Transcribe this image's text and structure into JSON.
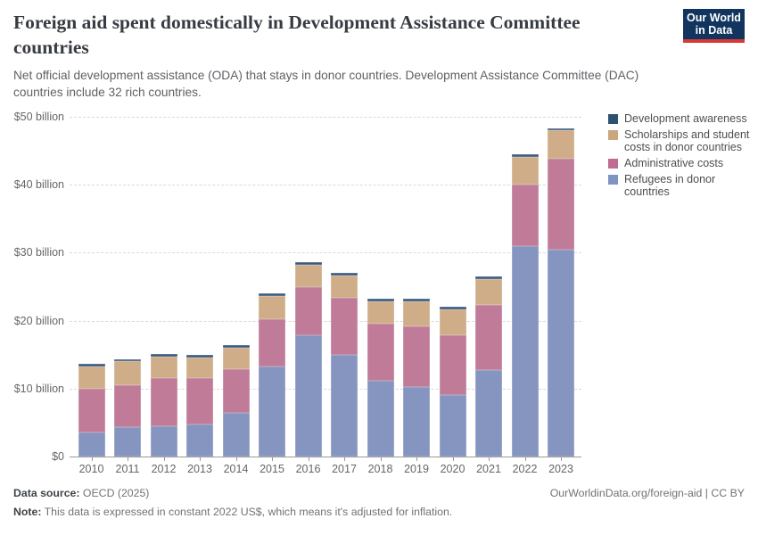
{
  "header": {
    "title": "Foreign aid spent domestically in Development Assistance Committee countries",
    "subtitle": "Net official development assistance (ODA) that stays in donor countries. Development Assistance Committee (DAC) countries include 32 rich countries.",
    "logo": {
      "line1": "Our World",
      "line2": "in Data",
      "bg_color": "#12355f",
      "accent_color": "#d93a34"
    }
  },
  "chart_data": {
    "type": "bar",
    "stacked": true,
    "title": "Foreign aid spent domestically in Development Assistance Committee countries",
    "unit": "constant 2022 US$ billions",
    "categories": [
      "2010",
      "2011",
      "2012",
      "2013",
      "2014",
      "2015",
      "2016",
      "2017",
      "2018",
      "2019",
      "2020",
      "2021",
      "2022",
      "2023"
    ],
    "series": [
      {
        "name": "Refugees in donor countries",
        "color": "#8595bf",
        "legend_color": "#7d95c2",
        "values": [
          3.6,
          4.3,
          4.4,
          4.7,
          6.4,
          13.2,
          17.8,
          15.0,
          11.2,
          10.2,
          9.0,
          12.7,
          31.0,
          30.5
        ]
      },
      {
        "name": "Administrative costs",
        "color": "#bf7b98",
        "legend_color": "#c06b90",
        "values": [
          6.4,
          6.2,
          7.1,
          6.8,
          6.4,
          7.0,
          7.1,
          8.4,
          8.3,
          9.0,
          8.8,
          9.6,
          9.0,
          13.3
        ]
      },
      {
        "name": "Scholarships and student costs in donor countries",
        "color": "#cfad88",
        "legend_color": "#c7a77b",
        "values": [
          3.3,
          3.5,
          3.2,
          3.1,
          3.2,
          3.4,
          3.3,
          3.2,
          3.3,
          3.6,
          3.9,
          3.8,
          4.1,
          4.2
        ]
      },
      {
        "name": "Development awareness",
        "color": "#3a5a80",
        "legend_color": "#2d5271",
        "values": [
          0.35,
          0.35,
          0.4,
          0.4,
          0.4,
          0.4,
          0.4,
          0.4,
          0.4,
          0.4,
          0.4,
          0.4,
          0.4,
          0.3
        ]
      }
    ],
    "legend": [
      {
        "label": "Development awareness",
        "color": "#2d5271"
      },
      {
        "label": "Scholarships and student costs in donor countries",
        "color": "#c7a77b"
      },
      {
        "label": "Administrative costs",
        "color": "#c06b90"
      },
      {
        "label": "Refugees in donor countries",
        "color": "#7d95c2"
      }
    ],
    "legend_position": "right",
    "grid": "dashed-horizontal",
    "ylim": [
      0,
      50
    ],
    "yticks": [
      {
        "value": 0,
        "label": "$0"
      },
      {
        "value": 10,
        "label": "$10 billion"
      },
      {
        "value": 20,
        "label": "$20 billion"
      },
      {
        "value": 30,
        "label": "$30 billion"
      },
      {
        "value": 40,
        "label": "$40 billion"
      },
      {
        "value": 50,
        "label": "$50 billion"
      }
    ]
  },
  "footer": {
    "source_label": "Data source:",
    "source_value": " OECD (2025)",
    "note_label": "Note:",
    "note_value": " This data is expressed in constant 2022 US$, which means it's adjusted for inflation.",
    "link": "OurWorldinData.org/foreign-aid | CC BY"
  }
}
